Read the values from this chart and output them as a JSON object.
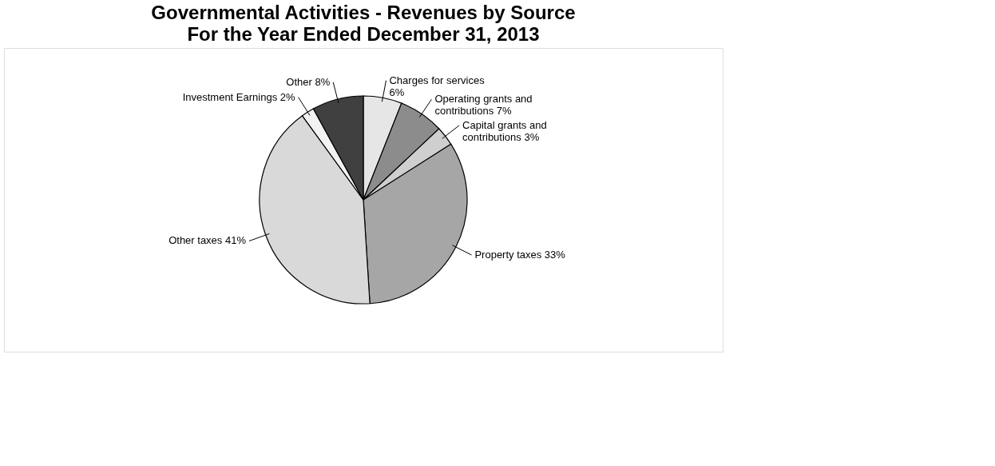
{
  "chart_data": {
    "type": "pie",
    "title": "Governmental Activities - Revenues by Source",
    "subtitle": "For the Year Ended December 31, 2013",
    "categories": [
      "Charges for services",
      "Operating grants and contributions",
      "Capital grants and contributions",
      "Property taxes",
      "Other taxes",
      "Investment Earnings",
      "Other"
    ],
    "values": [
      6,
      7,
      3,
      33,
      41,
      2,
      8
    ],
    "colors": [
      "#e6e6e6",
      "#8c8c8c",
      "#cfcfcf",
      "#a6a6a6",
      "#d9d9d9",
      "#f2f2f2",
      "#404040"
    ],
    "value_labels": [
      "6%",
      "7%",
      "3%",
      "33%",
      "41%",
      "2%",
      "8%"
    ],
    "legend": false
  }
}
